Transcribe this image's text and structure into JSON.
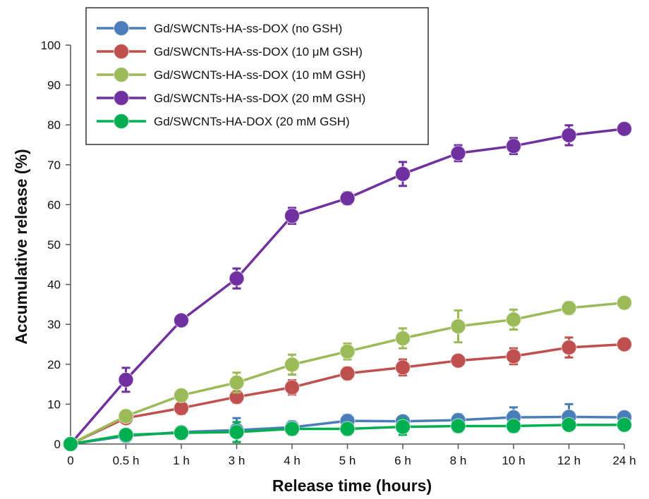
{
  "chart_data": {
    "type": "line",
    "title": "",
    "xlabel": "Release time (hours)",
    "ylabel": "Accumulative release (%)",
    "categories": [
      "0",
      "0.5 h",
      "1 h",
      "3 h",
      "4 h",
      "5 h",
      "6 h",
      "8 h",
      "10 h",
      "12 h",
      "24 h"
    ],
    "ylim": [
      0,
      100
    ],
    "yticks": [
      0,
      10,
      20,
      30,
      40,
      50,
      60,
      70,
      80,
      90,
      100
    ],
    "grid": false,
    "legend_position": "top-left",
    "error_bars": true,
    "series": [
      {
        "name": "Gd/SWCNTs-HA-ss-DOX (no GSH)",
        "color": "#4a7ebb",
        "values": [
          0,
          2,
          3,
          3.5,
          4.2,
          5.8,
          5.7,
          6,
          6.7,
          6.8,
          6.7
        ],
        "errors": [
          0.8,
          1,
          1.2,
          3,
          1.5,
          1.5,
          1,
          1.5,
          2.5,
          3.2,
          1
        ]
      },
      {
        "name": "Gd/SWCNTs-HA-ss-DOX (10 μM GSH)",
        "color": "#c0504d",
        "values": [
          0,
          6.5,
          9,
          11.8,
          14.2,
          17.7,
          19.2,
          20.9,
          22,
          24.2,
          25
        ],
        "errors": [
          0.5,
          1,
          1.5,
          1.5,
          1.8,
          1.5,
          2,
          1,
          2,
          2.5,
          1
        ]
      },
      {
        "name": "Gd/SWCNTs-HA-ss-DOX (10 mM GSH)",
        "color": "#9bbb59",
        "values": [
          0,
          7,
          12.2,
          15.4,
          19.9,
          23.2,
          26.5,
          29.5,
          31.2,
          34.1,
          35.4
        ],
        "errors": [
          0.5,
          1,
          1.2,
          2.5,
          2.5,
          2,
          2.5,
          4,
          2.5,
          1.5,
          1
        ]
      },
      {
        "name": "Gd/SWCNTs-HA-ss-DOX (20 mM GSH)",
        "color": "#7030a0",
        "values": [
          0,
          16.1,
          31,
          41.5,
          57.2,
          61.6,
          67.7,
          72.9,
          74.7,
          77.4,
          79
        ],
        "errors": [
          0.5,
          3,
          1,
          2.5,
          2,
          1.5,
          3,
          2,
          2,
          2.5,
          1
        ]
      },
      {
        "name": "Gd/SWCNTs-HA-DOX (20 mM GSH)",
        "color": "#00b050",
        "values": [
          0,
          2.3,
          2.8,
          3,
          3.8,
          3.8,
          4.3,
          4.5,
          4.5,
          4.8,
          4.8
        ],
        "errors": [
          0.5,
          1,
          1.5,
          2.5,
          1.5,
          1.5,
          2,
          1.5,
          1.5,
          1.2,
          1
        ]
      }
    ]
  }
}
